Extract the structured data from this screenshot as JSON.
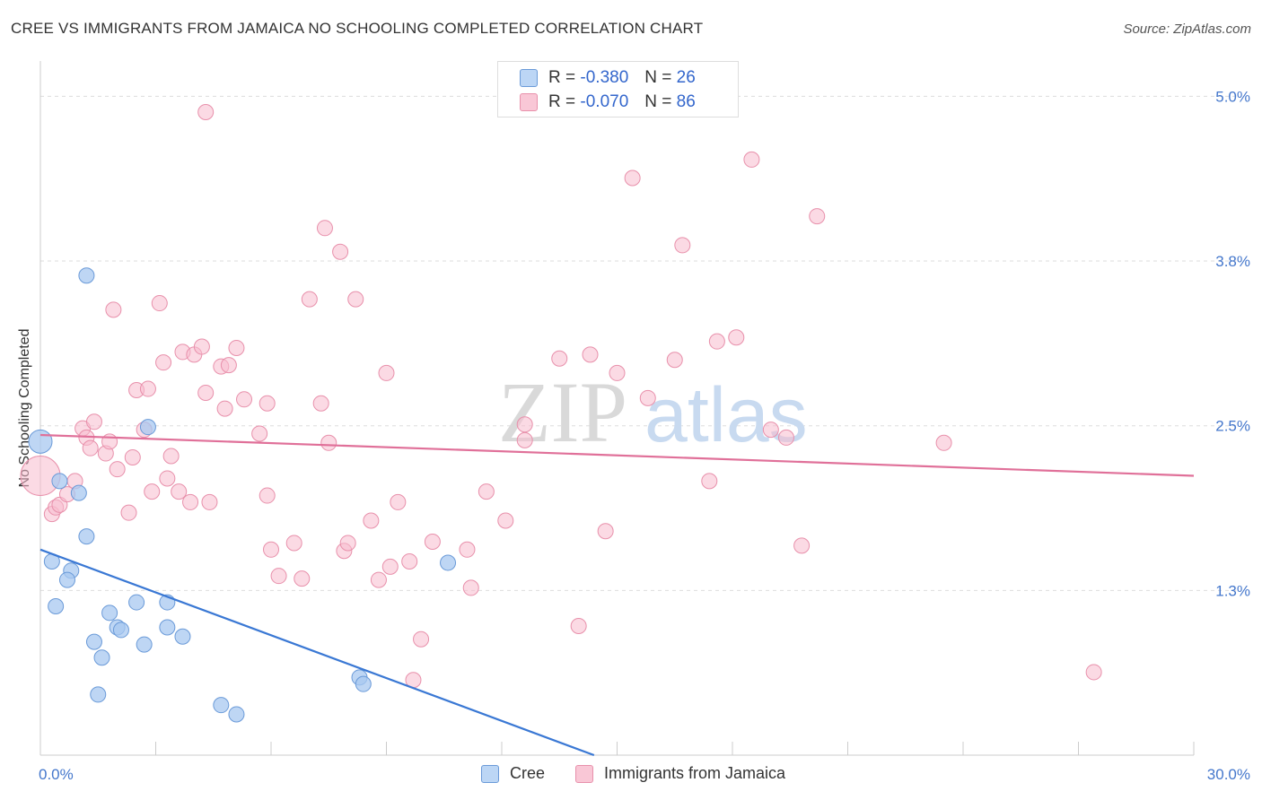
{
  "chart_data": {
    "type": "scatter",
    "title": "CREE VS IMMIGRANTS FROM JAMAICA NO SCHOOLING COMPLETED CORRELATION CHART",
    "source": "Source: ZipAtlas.com",
    "xlabel": "",
    "ylabel": "No Schooling Completed",
    "xlim": [
      0,
      30
    ],
    "ylim": [
      0,
      5.2
    ],
    "x_tick_labels": [
      "0.0%",
      "30.0%"
    ],
    "y_ticks": [
      {
        "value": 5.0,
        "label": "5.0%"
      },
      {
        "value": 3.75,
        "label": "3.8%"
      },
      {
        "value": 2.5,
        "label": "2.5%"
      },
      {
        "value": 1.25,
        "label": "1.3%"
      }
    ],
    "watermark": {
      "zip": "ZIP",
      "atlas": "atlas"
    },
    "legend_stats": [
      {
        "r_label": "R =",
        "r_value": "-0.380",
        "n_label": "N =",
        "n_value": "26"
      },
      {
        "r_label": "R =",
        "r_value": "-0.070",
        "n_label": "N =",
        "n_value": "86"
      }
    ],
    "series": [
      {
        "name": "Cree",
        "color": "#a8c8f0",
        "stroke": "#6a9ad8",
        "line_color": "#3a78d4",
        "trend": {
          "x0": 0.0,
          "y0": 1.56,
          "x1": 14.4,
          "y1": 0.0
        },
        "points": [
          [
            0.0,
            2.38
          ],
          [
            0.5,
            2.08
          ],
          [
            1.0,
            1.99
          ],
          [
            1.2,
            3.64
          ],
          [
            1.2,
            1.66
          ],
          [
            0.3,
            1.47
          ],
          [
            0.8,
            1.4
          ],
          [
            0.7,
            1.33
          ],
          [
            2.8,
            2.49
          ],
          [
            0.4,
            1.13
          ],
          [
            1.8,
            1.08
          ],
          [
            2.5,
            1.16
          ],
          [
            3.3,
            1.16
          ],
          [
            2.0,
            0.97
          ],
          [
            2.1,
            0.95
          ],
          [
            3.3,
            0.97
          ],
          [
            3.7,
            0.9
          ],
          [
            1.4,
            0.86
          ],
          [
            2.7,
            0.84
          ],
          [
            1.6,
            0.74
          ],
          [
            1.5,
            0.46
          ],
          [
            4.7,
            0.38
          ],
          [
            5.1,
            0.31
          ],
          [
            8.3,
            0.59
          ],
          [
            8.4,
            0.54
          ],
          [
            10.6,
            1.46
          ]
        ]
      },
      {
        "name": "Immigrants from Jamaica",
        "color": "#f7bccd",
        "stroke": "#e890ab",
        "line_color": "#e07099",
        "trend": {
          "x0": 0.0,
          "y0": 2.43,
          "x1": 30.0,
          "y1": 2.12
        },
        "points": [
          [
            0.0,
            2.12
          ],
          [
            0.3,
            1.83
          ],
          [
            0.4,
            1.88
          ],
          [
            0.5,
            1.9
          ],
          [
            0.7,
            1.98
          ],
          [
            0.9,
            2.08
          ],
          [
            1.1,
            2.48
          ],
          [
            1.2,
            2.41
          ],
          [
            1.3,
            2.33
          ],
          [
            1.4,
            2.53
          ],
          [
            1.7,
            2.29
          ],
          [
            1.8,
            2.38
          ],
          [
            1.9,
            3.38
          ],
          [
            2.0,
            2.17
          ],
          [
            2.3,
            1.84
          ],
          [
            2.4,
            2.26
          ],
          [
            2.5,
            2.77
          ],
          [
            2.7,
            2.47
          ],
          [
            2.8,
            2.78
          ],
          [
            2.9,
            2.0
          ],
          [
            3.1,
            3.43
          ],
          [
            3.2,
            2.98
          ],
          [
            3.3,
            2.1
          ],
          [
            3.4,
            2.27
          ],
          [
            3.6,
            2.0
          ],
          [
            3.9,
            1.92
          ],
          [
            3.7,
            3.06
          ],
          [
            4.0,
            3.04
          ],
          [
            4.2,
            3.1
          ],
          [
            4.3,
            2.75
          ],
          [
            4.4,
            1.92
          ],
          [
            4.7,
            2.95
          ],
          [
            4.9,
            2.96
          ],
          [
            4.8,
            2.63
          ],
          [
            5.1,
            3.09
          ],
          [
            5.3,
            2.7
          ],
          [
            5.7,
            2.44
          ],
          [
            5.9,
            2.67
          ],
          [
            5.9,
            1.97
          ],
          [
            6.0,
            1.56
          ],
          [
            6.2,
            1.36
          ],
          [
            6.6,
            1.61
          ],
          [
            6.8,
            1.34
          ],
          [
            7.0,
            3.46
          ],
          [
            7.3,
            2.67
          ],
          [
            7.5,
            2.37
          ],
          [
            7.4,
            4.0
          ],
          [
            7.8,
            3.82
          ],
          [
            7.9,
            1.55
          ],
          [
            8.0,
            1.61
          ],
          [
            8.2,
            3.46
          ],
          [
            8.6,
            1.78
          ],
          [
            8.8,
            1.33
          ],
          [
            9.1,
            1.43
          ],
          [
            9.0,
            2.9
          ],
          [
            9.3,
            1.92
          ],
          [
            9.6,
            1.47
          ],
          [
            9.7,
            0.57
          ],
          [
            9.9,
            0.88
          ],
          [
            10.2,
            1.62
          ],
          [
            11.1,
            1.56
          ],
          [
            11.2,
            1.27
          ],
          [
            11.6,
            2.0
          ],
          [
            12.1,
            1.78
          ],
          [
            12.6,
            2.51
          ],
          [
            12.6,
            2.39
          ],
          [
            13.5,
            3.01
          ],
          [
            14.0,
            0.98
          ],
          [
            14.3,
            3.04
          ],
          [
            14.7,
            1.7
          ],
          [
            15.0,
            2.9
          ],
          [
            15.4,
            4.38
          ],
          [
            15.8,
            2.71
          ],
          [
            16.5,
            3.0
          ],
          [
            16.7,
            3.87
          ],
          [
            17.4,
            2.08
          ],
          [
            17.6,
            3.14
          ],
          [
            18.1,
            3.17
          ],
          [
            18.5,
            4.52
          ],
          [
            19.0,
            2.47
          ],
          [
            19.4,
            2.41
          ],
          [
            19.8,
            1.59
          ],
          [
            20.2,
            4.09
          ],
          [
            23.5,
            2.37
          ],
          [
            27.4,
            0.63
          ],
          [
            4.3,
            4.88
          ]
        ]
      }
    ]
  }
}
